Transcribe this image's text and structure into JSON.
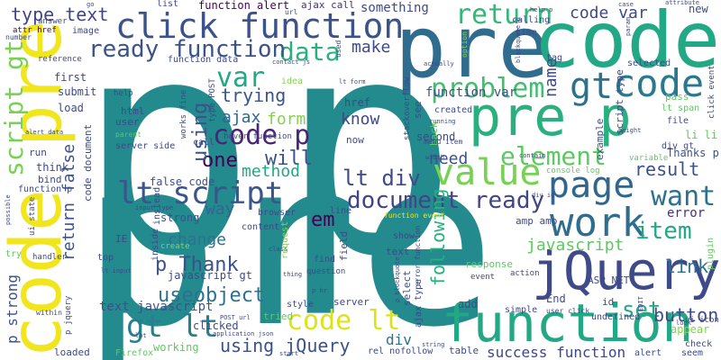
{
  "words": [
    {
      "text": "p",
      "color": "#238a8d"
    },
    {
      "text": "pre",
      "color": "#238a8d"
    },
    {
      "text": "p",
      "color": "#238a8d"
    },
    {
      "text": "pre",
      "color": "#2f6c8e"
    },
    {
      "text": "code",
      "color": "#22a884"
    },
    {
      "text": "code pre",
      "color": "#f1e51d"
    },
    {
      "text": "jQuery",
      "color": "#3e4a89"
    },
    {
      "text": "function",
      "color": "#22a884"
    },
    {
      "text": "pre p",
      "color": "#2ab07f"
    },
    {
      "text": "click function",
      "color": "#3b528b"
    },
    {
      "text": "code",
      "color": "#29788e"
    },
    {
      "text": "gt",
      "color": "#2c728e"
    },
    {
      "text": "work",
      "color": "#2f6c8e"
    },
    {
      "text": "page",
      "color": "#31678e"
    },
    {
      "text": "value",
      "color": "#77d153"
    },
    {
      "text": "lt script",
      "color": "#39558c"
    },
    {
      "text": "problem",
      "color": "#42be71"
    },
    {
      "text": "data",
      "color": "#2ab07f"
    },
    {
      "text": "return",
      "color": "#35b779"
    },
    {
      "text": "element",
      "color": "#5ec962"
    },
    {
      "text": "document ready",
      "color": "#414487"
    },
    {
      "text": "ready function",
      "color": "#3b528b"
    },
    {
      "text": "code lt",
      "color": "#dde318"
    },
    {
      "text": "gt lt",
      "color": "#287d8e"
    },
    {
      "text": "want",
      "color": "#2c728e"
    },
    {
      "text": "script gt",
      "color": "#77d153"
    },
    {
      "text": "type text",
      "color": "#414487"
    },
    {
      "text": "code var",
      "color": "#3e4a89"
    },
    {
      "text": "var",
      "color": "#22a884"
    },
    {
      "text": "code p",
      "color": "#482576"
    },
    {
      "text": "item",
      "color": "#22a884"
    },
    {
      "text": "lt div",
      "color": "#3e4a89"
    },
    {
      "text": "using jQuery",
      "color": "#3b528b"
    },
    {
      "text": "success function",
      "color": "#3f4788"
    },
    {
      "text": "useobject",
      "color": "#2c728e"
    },
    {
      "text": "p Thank",
      "color": "#3b528b"
    },
    {
      "text": "set",
      "color": "#22a884"
    },
    {
      "text": "button",
      "color": "#3e4a89"
    },
    {
      "text": "result",
      "color": "#3b528b"
    },
    {
      "text": "javascript",
      "color": "#5ec962"
    },
    {
      "text": "link",
      "color": "#2d708e"
    },
    {
      "text": "one",
      "color": "#440154"
    },
    {
      "text": "will",
      "color": "#3b528b"
    },
    {
      "text": "trying",
      "color": "#39558c"
    },
    {
      "text": "change",
      "color": "#2c728e"
    },
    {
      "text": "know",
      "color": "#3e4a89"
    },
    {
      "text": "form",
      "color": "#84d44b"
    },
    {
      "text": "method",
      "color": "#22a884"
    },
    {
      "text": "need",
      "color": "#3b528b"
    },
    {
      "text": "em",
      "color": "#440154"
    },
    {
      "text": "way",
      "color": "#31678e"
    },
    {
      "text": "using",
      "color": "#3b528b"
    },
    {
      "text": "ajax",
      "color": "#31678e"
    },
    {
      "text": "make",
      "color": "#3e4a89"
    },
    {
      "text": "name",
      "color": "#3e4a89"
    },
    {
      "text": "following",
      "color": "#2ab07f"
    },
    {
      "text": "return false",
      "color": "#3b528b"
    },
    {
      "text": "p strong",
      "color": "#3b528b"
    },
    {
      "text": "div",
      "color": "#2d708e"
    },
    {
      "text": "text javascript",
      "color": "#3b528b"
    },
    {
      "text": "something",
      "color": "#3e4a89"
    },
    {
      "text": "function alert",
      "color": "#440154"
    },
    {
      "text": "ajax call",
      "color": "#46327e"
    },
    {
      "text": "error",
      "color": "#46327e"
    },
    {
      "text": "new",
      "color": "#3e4a89"
    },
    {
      "text": "working",
      "color": "#5ec962"
    },
    {
      "text": "strong",
      "color": "#3b528b"
    },
    {
      "text": "javascript gt",
      "color": "#3e4a89"
    },
    {
      "text": "clicked",
      "color": "#3e4a89"
    },
    {
      "text": "tried",
      "color": "#5ec962"
    },
    {
      "text": "false code",
      "color": "#3b528b"
    },
    {
      "text": "hover function",
      "color": "#3e4a89"
    },
    {
      "text": "Thanks p",
      "color": "#3b528b"
    },
    {
      "text": "li li",
      "color": "#5ec962"
    },
    {
      "text": "function var",
      "color": "#3b528b"
    },
    {
      "text": "ASP NET",
      "color": "#3e4a89"
    },
    {
      "text": "amp amp",
      "color": "#3e4a89"
    },
    {
      "text": "server side",
      "color": "#3e4a89"
    },
    {
      "text": "content",
      "color": "#3e4a89"
    },
    {
      "text": "attr href",
      "color": "#440154"
    },
    {
      "text": "answer",
      "color": "#3e4a89"
    },
    {
      "text": "image",
      "color": "#3e4a89"
    },
    {
      "text": "first",
      "color": "#3e4a89"
    },
    {
      "text": "submit",
      "color": "#3e4a89"
    },
    {
      "text": "load",
      "color": "#3e4a89"
    },
    {
      "text": "html",
      "color": "#3e4a89"
    },
    {
      "text": "user",
      "color": "#3e4a89"
    },
    {
      "text": "help",
      "color": "#3e4a89"
    },
    {
      "text": "think",
      "color": "#3e4a89"
    },
    {
      "text": "bind",
      "color": "#3e4a89"
    },
    {
      "text": "run",
      "color": "#3e4a89"
    },
    {
      "text": "list",
      "color": "#3e4a89"
    },
    {
      "text": "url",
      "color": "#3e4a89"
    },
    {
      "text": "idea",
      "color": "#84d44b"
    },
    {
      "text": "href",
      "color": "#3e4a89"
    },
    {
      "text": "created",
      "color": "#3e4a89"
    },
    {
      "text": "second",
      "color": "#3e4a89"
    },
    {
      "text": "time",
      "color": "#3e4a89"
    },
    {
      "text": "calling",
      "color": "#3e4a89"
    },
    {
      "text": "tag",
      "color": "#3e4a89"
    },
    {
      "text": "pass",
      "color": "#5ec962"
    },
    {
      "text": "selected",
      "color": "#3e4a89"
    },
    {
      "text": "lt span",
      "color": "#5ec962"
    },
    {
      "text": "file",
      "color": "#3e4a89"
    },
    {
      "text": "div gt",
      "color": "#3e4a89"
    },
    {
      "text": "example",
      "color": "#3e4a89"
    },
    {
      "text": "console log",
      "color": "#5ec962"
    },
    {
      "text": "variable",
      "color": "#5ec962"
    },
    {
      "text": "IE",
      "color": "#3e4a89"
    },
    {
      "text": "create",
      "color": "#84d44b"
    },
    {
      "text": "top",
      "color": "#3e4a89"
    },
    {
      "text": "show",
      "color": "#3e4a89"
    },
    {
      "text": "text",
      "color": "#3e4a89"
    },
    {
      "text": "find",
      "color": "#3e4a89"
    },
    {
      "text": "question",
      "color": "#3e4a89"
    },
    {
      "text": "response",
      "color": "#5ec962"
    },
    {
      "text": "action",
      "color": "#3e4a89"
    },
    {
      "text": "event",
      "color": "#3e4a89"
    },
    {
      "text": "End",
      "color": "#3e4a89"
    },
    {
      "text": "id",
      "color": "#3e4a89"
    },
    {
      "text": "appear",
      "color": "#84d44b"
    },
    {
      "text": "ui icon",
      "color": "#3e4a89"
    },
    {
      "text": "check",
      "color": "#3e4a89"
    },
    {
      "text": "seem",
      "color": "#3e4a89"
    },
    {
      "text": "alert",
      "color": "#3e4a89"
    },
    {
      "text": "undefined",
      "color": "#3e4a89"
    },
    {
      "text": "simple",
      "color": "#3e4a89"
    },
    {
      "text": "add",
      "color": "#3e4a89"
    },
    {
      "text": "server",
      "color": "#3e4a89"
    },
    {
      "text": "style",
      "color": "#3e4a89"
    },
    {
      "text": "browser",
      "color": "#3e4a89"
    },
    {
      "text": "line",
      "color": "#3e4a89"
    },
    {
      "text": "table",
      "color": "#3e4a89"
    },
    {
      "text": "rel nofollow",
      "color": "#3e4a89"
    },
    {
      "text": "loaded",
      "color": "#3e4a89"
    },
    {
      "text": "Firefox",
      "color": "#5ec962"
    },
    {
      "text": "instead",
      "color": "#3e4a89"
    },
    {
      "text": "now",
      "color": "#3e4a89"
    },
    {
      "text": "see",
      "color": "#3e4a89"
    },
    {
      "text": "back",
      "color": "#5ec962"
    },
    {
      "text": "call",
      "color": "#3e4a89"
    },
    {
      "text": "inside",
      "color": "#3e4a89"
    },
    {
      "text": "field",
      "color": "#3e4a89"
    },
    {
      "text": "select",
      "color": "#3e4a89"
    },
    {
      "text": "ajax type",
      "color": "#3e4a89"
    },
    {
      "text": "stackoverflow",
      "color": "#3e4a89"
    },
    {
      "text": "menu item",
      "color": "#3e4a89"
    },
    {
      "text": "function event",
      "color": "#f1e51d"
    },
    {
      "text": "error function",
      "color": "#3e4a89"
    },
    {
      "text": "script type",
      "color": "#3e4a89"
    },
    {
      "text": "function data",
      "color": "#3e4a89"
    },
    {
      "text": "code document",
      "color": "#3e4a89"
    },
    {
      "text": "type POST",
      "color": "#3e4a89"
    },
    {
      "text": "works fine",
      "color": "#3e4a89"
    },
    {
      "text": "function p",
      "color": "#3e4a89"
    },
    {
      "text": "ui state",
      "color": "#3e4a89"
    },
    {
      "text": "handler",
      "color": "#3e4a89"
    },
    {
      "text": "try",
      "color": "#5ec962"
    },
    {
      "text": "p jquery",
      "color": "#3e4a89"
    },
    {
      "text": "within",
      "color": "#3e4a89"
    },
    {
      "text": "reference",
      "color": "#3e4a89"
    },
    {
      "text": "number",
      "color": "#3e4a89"
    },
    {
      "text": "click event",
      "color": "#3e4a89"
    },
    {
      "text": "plugin",
      "color": "#5ec962"
    },
    {
      "text": "parent",
      "color": "#5ec962"
    },
    {
      "text": "request",
      "color": "#84d44b"
    },
    {
      "text": "actually",
      "color": "#3e4a89"
    },
    {
      "text": "running",
      "color": "#3e4a89"
    },
    {
      "text": "used",
      "color": "#3e4a89"
    },
    {
      "text": "option",
      "color": "#84d44b"
    },
    {
      "text": "user click",
      "color": "#3e4a89"
    },
    {
      "text": "string",
      "color": "#3e4a89"
    },
    {
      "text": "POST url",
      "color": "#3e4a89"
    },
    {
      "text": "application json",
      "color": "#3e4a89"
    },
    {
      "text": "thing",
      "color": "#3e4a89"
    },
    {
      "text": "class",
      "color": "#3e4a89"
    },
    {
      "text": "lt input",
      "color": "#3e4a89"
    },
    {
      "text": "input type",
      "color": "#3e4a89"
    },
    {
      "text": "lt form",
      "color": "#3e4a89"
    },
    {
      "text": "contact js",
      "color": "#3e4a89"
    },
    {
      "text": "help p",
      "color": "#3e4a89"
    },
    {
      "text": "go",
      "color": "#3e4a89"
    },
    {
      "text": "case",
      "color": "#3e4a89"
    },
    {
      "text": "attribute",
      "color": "#3e4a89"
    },
    {
      "text": "height",
      "color": "#3e4a89"
    },
    {
      "text": "look",
      "color": "#3e4a89"
    },
    {
      "text": "start",
      "color": "#3e4a89"
    },
    {
      "text": "alert data",
      "color": "#3e4a89"
    },
    {
      "text": "possible",
      "color": "#3e4a89"
    },
    {
      "text": "contain",
      "color": "#3e4a89"
    },
    {
      "text": "div id",
      "color": "#3e4a89"
    },
    {
      "text": "width",
      "color": "#3e4a89"
    },
    {
      "text": "lot",
      "color": "#3e4a89"
    },
    {
      "text": "p hr",
      "color": "#3e4a89"
    },
    {
      "text": "param",
      "color": "#3e4a89"
    },
    {
      "text": "EDIT",
      "color": "#3e4a89"
    },
    {
      "text": "blockquote p",
      "color": "#3e4a89"
    },
    {
      "text": "p blockquote",
      "color": "#3e4a89"
    }
  ]
}
